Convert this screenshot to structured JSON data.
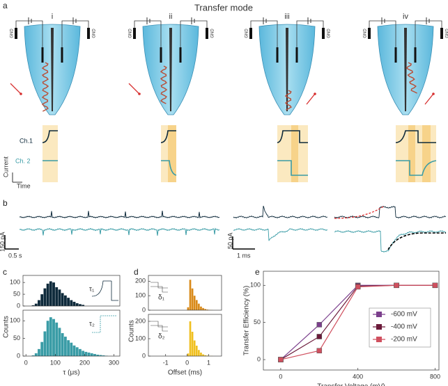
{
  "panel_labels": [
    "a",
    "b",
    "c",
    "d",
    "e"
  ],
  "panel_a": {
    "title": "Transfer mode",
    "steps": [
      "i",
      "ii",
      "iii",
      "iv"
    ],
    "gnd": "GND",
    "channels": [
      "Ch.1",
      "Ch. 2"
    ],
    "axis_current": "Current",
    "axis_time": "Time"
  },
  "panel_b": {
    "scale_left_y": "150 pA",
    "scale_left_x": "0.5 s",
    "scale_right_y": "50 pA",
    "scale_right_x": "1 ms"
  },
  "chart_data": [
    {
      "type": "histogram",
      "color": "#0e2a3b",
      "annotation": "τ₁",
      "ylabel": "Counts",
      "bins": [
        20,
        30,
        40,
        50,
        60,
        70,
        80,
        90,
        100,
        110,
        120,
        130,
        140,
        150,
        160,
        170,
        180,
        190,
        200
      ],
      "counts": [
        3,
        10,
        25,
        50,
        75,
        95,
        105,
        100,
        80,
        70,
        55,
        45,
        35,
        25,
        18,
        12,
        8,
        5
      ],
      "xlim": [
        -10,
        320
      ],
      "ylim": [
        0,
        130
      ],
      "yticks": [
        0,
        50,
        100
      ]
    },
    {
      "type": "histogram",
      "color": "#3a9ca6",
      "annotation": "τ₂",
      "xlabel": "τ (μs)",
      "bins": [
        20,
        30,
        40,
        50,
        60,
        70,
        80,
        90,
        100,
        110,
        120,
        130,
        140,
        150,
        160,
        170,
        180,
        190,
        200,
        210,
        220,
        230,
        240,
        250,
        260,
        270,
        280
      ],
      "counts": [
        2,
        8,
        20,
        40,
        70,
        100,
        110,
        105,
        95,
        80,
        65,
        55,
        45,
        38,
        30,
        25,
        20,
        15,
        12,
        10,
        8,
        6,
        4,
        3,
        2,
        1
      ],
      "xlim": [
        -10,
        320
      ],
      "ylim": [
        0,
        130
      ],
      "yticks": [
        0,
        50,
        100
      ],
      "xticks": [
        0,
        100,
        200,
        300
      ]
    },
    {
      "type": "histogram",
      "color": "#d98a1a",
      "annotation": "δ₁",
      "ylabel": "Counts",
      "bins": [
        0,
        0.1,
        0.2,
        0.3,
        0.4,
        0.5,
        0.6,
        0.7,
        0.8,
        0.9,
        1.0,
        1.1,
        1.2
      ],
      "counts": [
        20,
        210,
        150,
        100,
        70,
        45,
        25,
        15,
        8,
        4,
        2,
        1
      ],
      "xlim": [
        -1.8,
        1.6
      ],
      "ylim": [
        0,
        240
      ],
      "yticks": [
        0,
        100,
        200
      ]
    },
    {
      "type": "histogram",
      "color": "#f0c020",
      "annotation": "δ₂",
      "xlabel": "Offset (ms)",
      "bins": [
        0,
        0.1,
        0.2,
        0.3,
        0.4,
        0.5,
        0.6,
        0.7,
        0.8,
        0.9,
        1.0,
        1.1,
        1.2
      ],
      "counts": [
        15,
        200,
        140,
        90,
        60,
        35,
        20,
        10,
        5,
        3,
        1,
        1
      ],
      "xlim": [
        -1.8,
        1.6
      ],
      "ylim": [
        0,
        240
      ],
      "yticks": [
        0,
        100,
        200
      ],
      "xticks": [
        -1,
        0,
        1
      ]
    },
    {
      "type": "line",
      "xlabel": "Transfer Voltage (mV)",
      "ylabel": "Transfer Efficiency (%)",
      "legend": "center-right",
      "x": [
        0,
        200,
        400,
        600,
        800
      ],
      "series": [
        {
          "name": "-600 mV",
          "color": "#7b3f8c",
          "values": [
            0,
            47,
            100,
            100,
            100
          ]
        },
        {
          "name": "-400 mV",
          "color": "#6b1a3a",
          "values": [
            0,
            31,
            99,
            100,
            100
          ]
        },
        {
          "name": "-200 mV",
          "color": "#d0505f",
          "values": [
            0,
            12,
            98,
            100,
            100
          ]
        }
      ],
      "xlim": [
        -90,
        820
      ],
      "ylim": [
        -14,
        119
      ],
      "xticks": [
        0,
        400,
        800
      ],
      "yticks": [
        0,
        50,
        100
      ]
    }
  ]
}
